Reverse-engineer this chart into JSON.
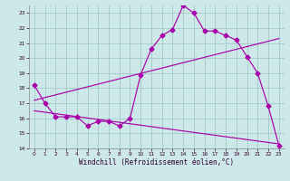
{
  "bg_color": "#cce8e8",
  "grid_color": "#aacccc",
  "line_color": "#aa00aa",
  "xlim": [
    -0.5,
    23.5
  ],
  "ylim": [
    14,
    23.5
  ],
  "xlabel": "Windchill (Refroidissement éolien,°C)",
  "yticks": [
    14,
    15,
    16,
    17,
    18,
    19,
    20,
    21,
    22,
    23
  ],
  "xticks": [
    0,
    1,
    2,
    3,
    4,
    5,
    6,
    7,
    8,
    9,
    10,
    11,
    12,
    13,
    14,
    15,
    16,
    17,
    18,
    19,
    20,
    21,
    22,
    23
  ],
  "series1_x": [
    0,
    1,
    2,
    3,
    4,
    5,
    6,
    7,
    8,
    9,
    10,
    11,
    12,
    13,
    14,
    15,
    16,
    17,
    18,
    19,
    20,
    21,
    22,
    23
  ],
  "series1_y": [
    18.2,
    17.0,
    16.1,
    16.1,
    16.1,
    15.5,
    15.8,
    15.8,
    15.5,
    16.0,
    18.9,
    20.6,
    21.5,
    21.9,
    23.5,
    23.0,
    21.8,
    21.8,
    21.5,
    21.2,
    20.1,
    19.0,
    16.8,
    14.2
  ],
  "series2_x": [
    0,
    23
  ],
  "series2_y": [
    17.2,
    21.3
  ],
  "series3_x": [
    0,
    23
  ],
  "series3_y": [
    16.5,
    14.3
  ],
  "xlabel_fontsize": 5.5,
  "tick_labelsize": 4.2,
  "marker_size": 2.5
}
